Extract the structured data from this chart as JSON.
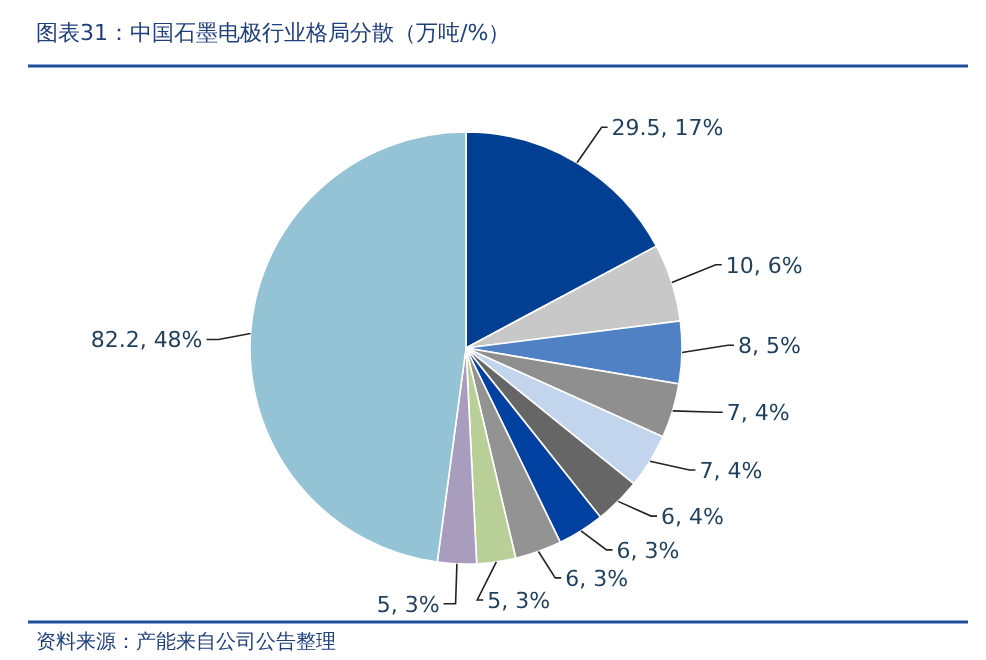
{
  "chart_data": {
    "type": "pie",
    "title": "图表31：中国石墨电极行业格局分散（万吨/%）",
    "categories": [
      null,
      null,
      null,
      null,
      null,
      null,
      null,
      null,
      null,
      null,
      null
    ],
    "values": [
      29.5,
      10,
      8,
      7,
      7,
      6,
      6,
      6,
      5,
      5,
      82.2
    ],
    "colors": [
      "#003f91",
      "#c8c8c8",
      "#4f81c4",
      "#8f8f8f",
      "#c3d5ec",
      "#666666",
      "#0040a0",
      "#939393",
      "#b8cf98",
      "#a99dbd",
      "#94c3d5"
    ],
    "value_labels": [
      "29.5, 17%",
      "10, 6%",
      "8, 5%",
      "7, 4%",
      "7, 4%",
      "6, 4%",
      "6, 3%",
      "6, 3%",
      "5, 3%",
      "5, 3%",
      "82.2, 48%"
    ],
    "annotations": [
      "资料来源：产能来自公司公告整理"
    ]
  }
}
